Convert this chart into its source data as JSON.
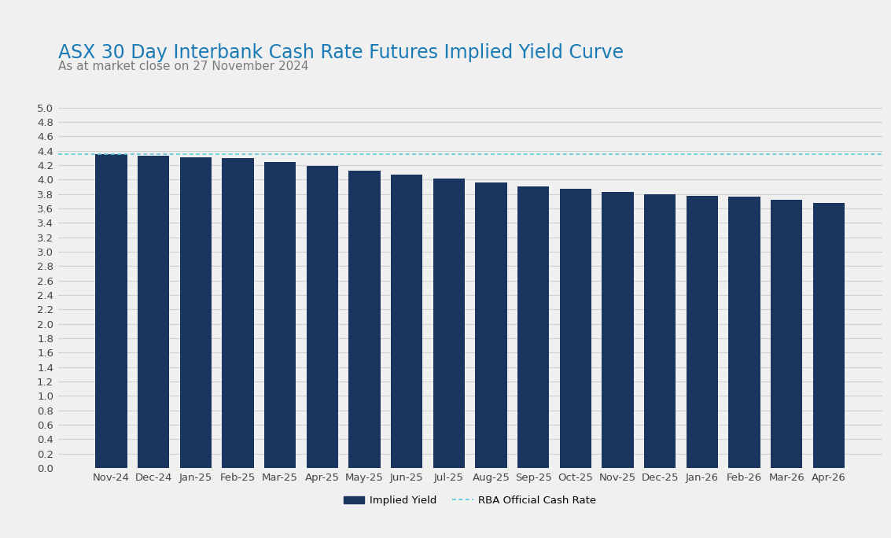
{
  "title": "ASX 30 Day Interbank Cash Rate Futures Implied Yield Curve",
  "subtitle": "As at market close on 27 November 2024",
  "categories": [
    "Nov-24",
    "Dec-24",
    "Jan-25",
    "Feb-25",
    "Mar-25",
    "Apr-25",
    "May-25",
    "Jun-25",
    "Jul-25",
    "Aug-25",
    "Sep-25",
    "Oct-25",
    "Nov-25",
    "Dec-25",
    "Jan-26",
    "Feb-26",
    "Mar-26",
    "Apr-26"
  ],
  "values": [
    4.35,
    4.33,
    4.31,
    4.3,
    4.25,
    4.19,
    4.13,
    4.07,
    4.02,
    3.96,
    3.91,
    3.87,
    3.83,
    3.8,
    3.78,
    3.76,
    3.72,
    3.68
  ],
  "bar_color": "#1a3560",
  "rba_rate": 4.35,
  "rba_line_color": "#5bc8d8",
  "ylim": [
    0.0,
    5.0
  ],
  "ytick_step": 0.2,
  "title_color": "#1a7ab5",
  "subtitle_color": "#7a7a7a",
  "background_color": "#f0f0f0",
  "plot_background_color": "#f0f0f0",
  "grid_color": "#d0d0d0",
  "legend_implied_yield_label": "Implied Yield",
  "legend_rba_label": "RBA Official Cash Rate",
  "title_fontsize": 17,
  "subtitle_fontsize": 11,
  "tick_fontsize": 9.5,
  "legend_fontsize": 9.5
}
